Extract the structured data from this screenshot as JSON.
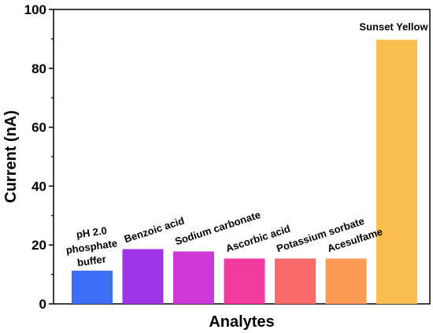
{
  "chart_data": {
    "type": "bar",
    "title": "",
    "xlabel": "Analytes",
    "ylabel": "Current (nA)",
    "ylim": [
      0,
      100
    ],
    "yticks": [
      0,
      20,
      40,
      60,
      80,
      100
    ],
    "grid": false,
    "categories": [
      "pH 2.0 phosphate buffer",
      "Benzoic acid",
      "Sodium carbonate",
      "Ascorbic acid",
      "Potassium sorbate",
      "Acesulfame",
      "Sunset Yellow"
    ],
    "category_label_lines": [
      [
        "pH 2.0",
        "phosphate",
        "buffer"
      ],
      [
        "Benzoic acid"
      ],
      [
        "Sodium carbonate"
      ],
      [
        "Ascorbic acid"
      ],
      [
        "Potassium sorbate"
      ],
      [
        "Acesulfame"
      ],
      [
        "Sunset Yellow"
      ]
    ],
    "values": [
      11.3,
      18.6,
      17.8,
      15.4,
      15.4,
      15.4,
      89.7
    ],
    "colors": [
      "#3f6ef6",
      "#a034e8",
      "#cf38d8",
      "#f23a9e",
      "#fa6a6a",
      "#fd9a52",
      "#fbbd4d"
    ]
  }
}
